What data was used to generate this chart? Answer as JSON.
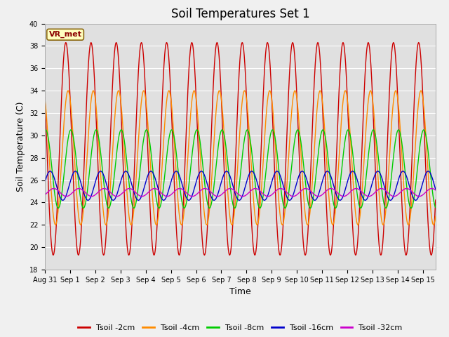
{
  "title": "Soil Temperatures Set 1",
  "xlabel": "Time",
  "ylabel": "Soil Temperature (C)",
  "ylim": [
    18,
    40
  ],
  "annotation": "VR_met",
  "plot_bg_color": "#e0e0e0",
  "fig_bg_color": "#f0f0f0",
  "grid_color": "#ffffff",
  "series": [
    {
      "label": "Tsoil -2cm",
      "color": "#cc0000",
      "amplitude": 9.5,
      "mean": 28.8,
      "phase_lag": 0.0
    },
    {
      "label": "Tsoil -4cm",
      "color": "#ff8c00",
      "amplitude": 6.0,
      "mean": 28.0,
      "phase_lag": 0.09
    },
    {
      "label": "Tsoil -8cm",
      "color": "#00cc00",
      "amplitude": 3.5,
      "mean": 27.0,
      "phase_lag": 0.2
    },
    {
      "label": "Tsoil -16cm",
      "color": "#0000cc",
      "amplitude": 1.3,
      "mean": 25.5,
      "phase_lag": 0.38
    },
    {
      "label": "Tsoil -32cm",
      "color": "#cc00cc",
      "amplitude": 0.35,
      "mean": 24.9,
      "phase_lag": 0.52
    }
  ],
  "tick_positions": [
    0,
    1,
    2,
    3,
    4,
    5,
    6,
    7,
    8,
    9,
    10,
    11,
    12,
    13,
    14,
    15
  ],
  "tick_labels": [
    "Aug 31",
    "Sep 1",
    "Sep 2",
    "Sep 3",
    "Sep 4",
    "Sep 5",
    "Sep 6",
    "Sep 7",
    "Sep 8",
    "Sep 9",
    "Sep 10",
    "Sep 11",
    "Sep 12",
    "Sep 13",
    "Sep 14",
    "Sep 15"
  ],
  "yticks": [
    18,
    20,
    22,
    24,
    26,
    28,
    30,
    32,
    34,
    36,
    38,
    40
  ],
  "xlim": [
    0,
    15.5
  ],
  "title_fontsize": 12,
  "axis_label_fontsize": 9,
  "tick_fontsize": 7,
  "legend_fontsize": 8,
  "linewidth": 1.0
}
